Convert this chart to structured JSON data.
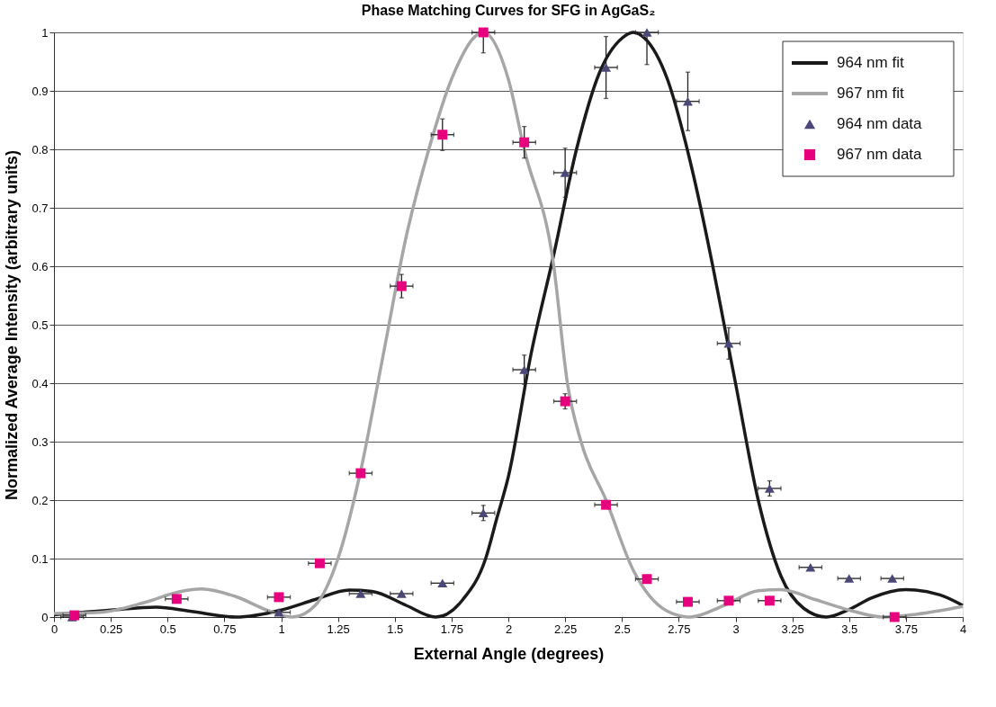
{
  "chart_data": {
    "type": "scatter",
    "title": "Phase Matching Curves for SFG in AgGaS₂",
    "xlabel": "External Angle (degrees)",
    "ylabel": "Normalized Average Intensity (arbitrary units)",
    "xlim": [
      0,
      4
    ],
    "xticks": [
      0,
      0.25,
      0.5,
      0.75,
      1,
      1.25,
      1.5,
      1.75,
      2,
      2.25,
      2.5,
      2.75,
      3,
      3.25,
      3.5,
      3.75,
      4
    ],
    "ylim": [
      0,
      1
    ],
    "yticks": [
      0,
      0.1,
      0.2,
      0.3,
      0.4,
      0.5,
      0.6,
      0.7,
      0.8,
      0.9,
      1
    ],
    "grid": "y",
    "legend": "top right",
    "series": [
      {
        "name": "964 nm fit",
        "type": "line",
        "color": "#1a1a1a",
        "marker": "none",
        "line_style": "solid",
        "x": [
          0,
          0.25,
          0.45,
          0.6,
          0.8,
          1.0,
          1.15,
          1.3,
          1.4,
          1.55,
          1.68,
          1.8,
          1.9,
          1.95,
          2.0,
          2.1,
          2.2,
          2.3,
          2.4,
          2.5,
          2.55,
          2.6,
          2.7,
          2.8,
          2.9,
          2.95,
          3.0,
          3.1,
          3.2,
          3.3,
          3.4,
          3.5,
          3.6,
          3.75,
          3.9,
          4.0
        ],
        "values": [
          0.004,
          0.012,
          0.017,
          0.01,
          0.0,
          0.012,
          0.03,
          0.046,
          0.044,
          0.02,
          0.0,
          0.03,
          0.1,
          0.17,
          0.24,
          0.45,
          0.62,
          0.8,
          0.93,
          0.99,
          1.0,
          0.99,
          0.92,
          0.78,
          0.6,
          0.5,
          0.4,
          0.2,
          0.07,
          0.015,
          0.0,
          0.013,
          0.033,
          0.047,
          0.038,
          0.02
        ]
      },
      {
        "name": "967 nm fit",
        "type": "line",
        "color": "#a6a6a6",
        "marker": "none",
        "line_style": "solid",
        "x": [
          0,
          0.2,
          0.4,
          0.55,
          0.65,
          0.8,
          0.95,
          1.05,
          1.15,
          1.25,
          1.35,
          1.45,
          1.55,
          1.65,
          1.75,
          1.89,
          2.0,
          2.07,
          2.2,
          2.26,
          2.32,
          2.43,
          2.55,
          2.7,
          2.8,
          2.95,
          3.1,
          3.2,
          3.35,
          3.5,
          3.65,
          3.8,
          4.0
        ],
        "values": [
          0.006,
          0.008,
          0.025,
          0.043,
          0.048,
          0.035,
          0.01,
          0.0,
          0.02,
          0.1,
          0.25,
          0.45,
          0.65,
          0.8,
          0.92,
          1.0,
          0.92,
          0.8,
          0.6,
          0.4,
          0.3,
          0.2,
          0.08,
          0.01,
          0.0,
          0.02,
          0.045,
          0.047,
          0.03,
          0.012,
          0.0,
          0.005,
          0.018
        ]
      },
      {
        "name": "964 nm data",
        "color": "#4b4878",
        "marker": "triangle",
        "x": [
          0.08,
          0.99,
          1.35,
          1.53,
          1.71,
          1.89,
          2.07,
          2.25,
          2.43,
          2.61,
          2.79,
          2.97,
          3.15,
          3.33,
          3.5,
          3.69
        ],
        "values": [
          0.0,
          0.008,
          0.04,
          0.04,
          0.058,
          0.178,
          0.423,
          0.76,
          0.94,
          1.0,
          0.882,
          0.468,
          0.22,
          0.085,
          0.066,
          0.066
        ],
        "errors": [
          null,
          null,
          null,
          null,
          null,
          0.013,
          0.025,
          0.042,
          0.053,
          [
            0.945,
            1.0
          ],
          0.05,
          0.027,
          0.013,
          null,
          null,
          null
        ],
        "xerrors": [
          0.05,
          0.05,
          0.05,
          0.05,
          0.05,
          0.05,
          0.05,
          0.05,
          0.05,
          0.05,
          0.05,
          0.05,
          0.05,
          0.05,
          0.05,
          0.05
        ]
      },
      {
        "name": "967 nm data",
        "color": "#e6007e",
        "marker": "square",
        "x": [
          0.09,
          0.54,
          0.99,
          1.17,
          1.35,
          1.53,
          1.71,
          1.89,
          2.07,
          2.25,
          2.43,
          2.61,
          2.79,
          2.97,
          3.15,
          3.7
        ],
        "values": [
          0.003,
          0.031,
          0.034,
          0.092,
          0.246,
          0.566,
          0.825,
          1.0,
          0.812,
          0.369,
          0.192,
          0.065,
          0.026,
          0.028,
          0.028,
          0.0
        ],
        "errors": [
          null,
          null,
          null,
          null,
          null,
          0.02,
          0.027,
          [
            0.965,
            1.0
          ],
          0.027,
          0.013,
          null,
          null,
          null,
          null,
          null,
          null
        ],
        "xerrors": [
          0.05,
          0.05,
          0.05,
          0.05,
          0.05,
          0.05,
          0.05,
          0.05,
          0.05,
          0.05,
          0.05,
          0.05,
          0.05,
          0.05,
          0.05,
          0.05
        ]
      }
    ]
  }
}
